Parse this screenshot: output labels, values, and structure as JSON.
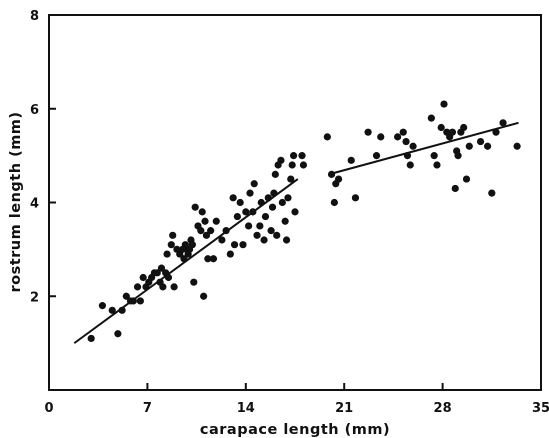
{
  "chart_data": {
    "type": "scatter",
    "title": "",
    "xlabel": "carapace length (mm)",
    "ylabel": "rostrum length (mm)",
    "xlim": [
      0,
      35
    ],
    "ylim": [
      0,
      8
    ],
    "xticks": [
      0,
      7,
      14,
      21,
      28,
      35
    ],
    "yticks": [
      2,
      4,
      6,
      8
    ],
    "grid": false,
    "points": [
      [
        3.0,
        1.1
      ],
      [
        3.8,
        1.8
      ],
      [
        4.5,
        1.7
      ],
      [
        4.9,
        1.2
      ],
      [
        5.2,
        1.7
      ],
      [
        5.5,
        2.0
      ],
      [
        5.8,
        1.9
      ],
      [
        6.0,
        1.9
      ],
      [
        6.3,
        2.2
      ],
      [
        6.5,
        1.9
      ],
      [
        6.7,
        2.4
      ],
      [
        6.9,
        2.2
      ],
      [
        7.1,
        2.3
      ],
      [
        7.3,
        2.4
      ],
      [
        7.5,
        2.5
      ],
      [
        7.7,
        2.5
      ],
      [
        7.9,
        2.3
      ],
      [
        8.0,
        2.6
      ],
      [
        8.1,
        2.2
      ],
      [
        8.3,
        2.5
      ],
      [
        8.4,
        2.9
      ],
      [
        8.5,
        2.4
      ],
      [
        8.7,
        3.1
      ],
      [
        8.8,
        3.3
      ],
      [
        8.9,
        2.2
      ],
      [
        9.1,
        3.0
      ],
      [
        9.3,
        2.9
      ],
      [
        9.5,
        3.0
      ],
      [
        9.6,
        2.8
      ],
      [
        9.7,
        3.1
      ],
      [
        9.8,
        3.0
      ],
      [
        9.9,
        2.9
      ],
      [
        10.0,
        3.0
      ],
      [
        10.1,
        3.2
      ],
      [
        10.2,
        3.1
      ],
      [
        10.3,
        2.3
      ],
      [
        10.4,
        3.9
      ],
      [
        10.6,
        3.5
      ],
      [
        10.8,
        3.4
      ],
      [
        10.9,
        3.8
      ],
      [
        11.0,
        2.0
      ],
      [
        11.1,
        3.6
      ],
      [
        11.2,
        3.3
      ],
      [
        11.3,
        2.8
      ],
      [
        11.5,
        3.4
      ],
      [
        11.7,
        2.8
      ],
      [
        11.9,
        3.6
      ],
      [
        12.3,
        3.2
      ],
      [
        12.6,
        3.4
      ],
      [
        12.9,
        2.9
      ],
      [
        13.1,
        4.1
      ],
      [
        13.2,
        3.1
      ],
      [
        13.4,
        3.7
      ],
      [
        13.6,
        4.0
      ],
      [
        13.8,
        3.1
      ],
      [
        14.0,
        3.8
      ],
      [
        14.2,
        3.5
      ],
      [
        14.3,
        4.2
      ],
      [
        14.5,
        3.8
      ],
      [
        14.6,
        4.4
      ],
      [
        14.8,
        3.3
      ],
      [
        15.0,
        3.5
      ],
      [
        15.1,
        4.0
      ],
      [
        15.3,
        3.2
      ],
      [
        15.4,
        3.7
      ],
      [
        15.6,
        4.1
      ],
      [
        15.8,
        3.4
      ],
      [
        15.9,
        3.9
      ],
      [
        16.0,
        4.2
      ],
      [
        16.1,
        4.6
      ],
      [
        16.2,
        3.3
      ],
      [
        16.3,
        4.8
      ],
      [
        16.5,
        4.9
      ],
      [
        16.6,
        4.0
      ],
      [
        16.8,
        3.6
      ],
      [
        16.9,
        3.2
      ],
      [
        17.0,
        4.1
      ],
      [
        17.2,
        4.5
      ],
      [
        17.3,
        4.8
      ],
      [
        17.4,
        5.0
      ],
      [
        17.5,
        3.8
      ],
      [
        18.0,
        5.0
      ],
      [
        18.1,
        4.8
      ],
      [
        19.8,
        5.4
      ],
      [
        20.1,
        4.6
      ],
      [
        20.3,
        4.0
      ],
      [
        20.4,
        4.4
      ],
      [
        20.6,
        4.5
      ],
      [
        21.5,
        4.9
      ],
      [
        21.8,
        4.1
      ],
      [
        22.7,
        5.5
      ],
      [
        23.3,
        5.0
      ],
      [
        23.6,
        5.4
      ],
      [
        24.8,
        5.4
      ],
      [
        25.2,
        5.5
      ],
      [
        25.4,
        5.3
      ],
      [
        25.5,
        5.0
      ],
      [
        25.7,
        4.8
      ],
      [
        25.9,
        5.2
      ],
      [
        27.2,
        5.8
      ],
      [
        27.4,
        5.0
      ],
      [
        27.6,
        4.8
      ],
      [
        27.9,
        5.6
      ],
      [
        28.1,
        6.1
      ],
      [
        28.3,
        5.5
      ],
      [
        28.5,
        5.4
      ],
      [
        28.7,
        5.5
      ],
      [
        28.9,
        4.3
      ],
      [
        29.0,
        5.1
      ],
      [
        29.1,
        5.0
      ],
      [
        29.3,
        5.5
      ],
      [
        29.5,
        5.6
      ],
      [
        29.7,
        4.5
      ],
      [
        29.9,
        5.2
      ],
      [
        30.7,
        5.3
      ],
      [
        31.2,
        5.2
      ],
      [
        31.5,
        4.2
      ],
      [
        31.8,
        5.5
      ],
      [
        32.3,
        5.7
      ],
      [
        33.3,
        5.2
      ]
    ],
    "fit_lines": [
      {
        "x": [
          1.8,
          17.7
        ],
        "y": [
          1.0,
          4.5
        ]
      },
      {
        "x": [
          19.9,
          33.4
        ],
        "y": [
          4.6,
          5.7
        ]
      }
    ]
  }
}
